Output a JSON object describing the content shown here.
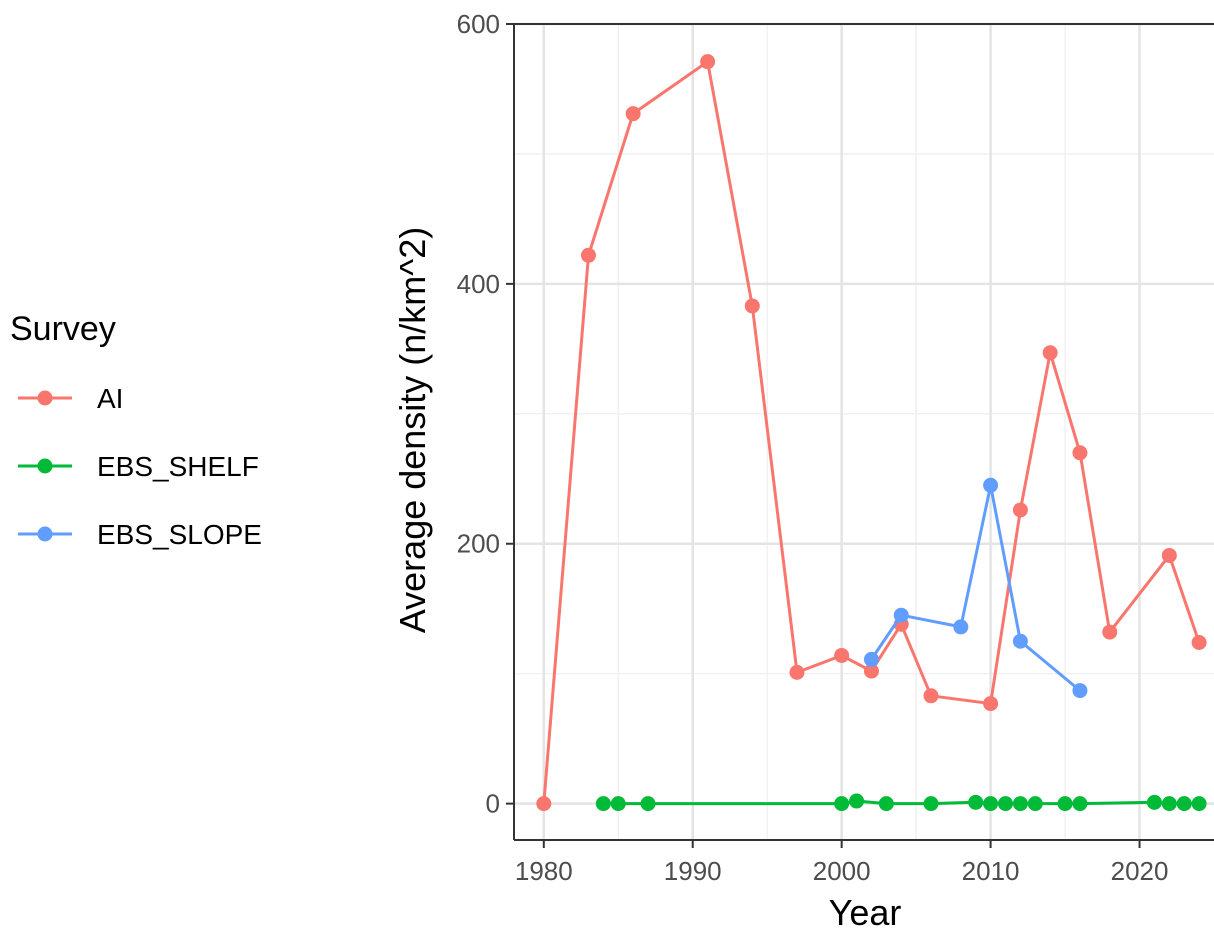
{
  "chart_data": {
    "type": "line",
    "xlabel": "Year",
    "ylabel": "Average density (n/km^2)",
    "xlim": [
      1978,
      2025
    ],
    "ylim": [
      -28,
      600
    ],
    "xticks": [
      1980,
      1990,
      2000,
      2010,
      2020
    ],
    "yticks": [
      0,
      200,
      400,
      600
    ],
    "x_tick_labels": [
      "1980",
      "1990",
      "2000",
      "2010",
      "2020"
    ],
    "y_tick_labels": [
      "0",
      "200",
      "400",
      "600"
    ],
    "grid": true,
    "legend": {
      "title": "Survey",
      "placement": "left"
    },
    "series": [
      {
        "name": "AI",
        "color": "#F8766D",
        "x": [
          1980,
          1983,
          1986,
          1991,
          1994,
          1997,
          2000,
          2002,
          2004,
          2006,
          2010,
          2012,
          2014,
          2016,
          2018,
          2022,
          2024
        ],
        "y": [
          0,
          422,
          531,
          571,
          383,
          101,
          114,
          102,
          138,
          83,
          77,
          226,
          347,
          270,
          132,
          191,
          124
        ]
      },
      {
        "name": "EBS_SHELF",
        "color": "#00BA38",
        "x": [
          1984,
          1985,
          1987,
          2000,
          2001,
          2003,
          2006,
          2009,
          2010,
          2011,
          2012,
          2013,
          2015,
          2016,
          2021,
          2022,
          2023,
          2024
        ],
        "y": [
          0,
          0,
          0,
          0,
          2,
          0,
          0,
          1,
          0,
          0,
          0,
          0,
          0,
          0,
          1,
          0,
          0,
          0
        ]
      },
      {
        "name": "EBS_SLOPE",
        "color": "#619CFF",
        "x": [
          2002,
          2004,
          2008,
          2010,
          2012,
          2016
        ],
        "y": [
          111,
          145,
          136,
          245,
          125,
          87
        ]
      }
    ]
  }
}
